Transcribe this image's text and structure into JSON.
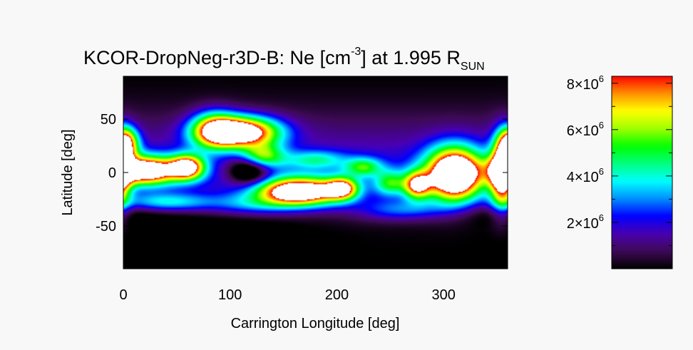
{
  "chart_data": {
    "type": "heatmap",
    "title": {
      "main": "KCOR-DropNeg-r3D-B: Ne [cm",
      "sup": "-3",
      "mid": "] at 1.995 R",
      "sub": "SUN"
    },
    "xlabel": "Carrington Longitude [deg]",
    "ylabel": "Latitude [deg]",
    "xlim": [
      0,
      360
    ],
    "ylim": [
      -90,
      90
    ],
    "xticks": [
      {
        "value": 0,
        "label": "0"
      },
      {
        "value": 100,
        "label": "100"
      },
      {
        "value": 200,
        "label": "200"
      },
      {
        "value": 300,
        "label": "300"
      }
    ],
    "yticks": [
      {
        "value": 50,
        "label": "50"
      },
      {
        "value": 0,
        "label": "0"
      },
      {
        "value": -50,
        "label": "-50"
      }
    ],
    "colorbar": {
      "range": [
        0,
        8300000
      ],
      "ticks": [
        {
          "value": 2000000,
          "coef": "2",
          "times": "×10",
          "exp": "6"
        },
        {
          "value": 4000000,
          "coef": "4",
          "times": "×10",
          "exp": "6"
        },
        {
          "value": 6000000,
          "coef": "6",
          "times": "×10",
          "exp": "6"
        },
        {
          "value": 8000000,
          "coef": "8",
          "times": "×10",
          "exp": "6"
        }
      ]
    },
    "colormap": [
      "#000000",
      "#3d0a55",
      "#4a00b0",
      "#0000ff",
      "#0090ff",
      "#00ffff",
      "#00ff80",
      "#00ff00",
      "#a0ff00",
      "#ffff00",
      "#ff9000",
      "#ff0000",
      "#ffffff"
    ],
    "density_features": [
      {
        "lon": 110,
        "lat": 38,
        "amp": 9500000.0,
        "sx": 25,
        "sy": 10
      },
      {
        "lon": 85,
        "lat": 40,
        "amp": 5000000.0,
        "sx": 15,
        "sy": 12
      },
      {
        "lon": 20,
        "lat": 2,
        "amp": 9500000.0,
        "sx": 22,
        "sy": 9
      },
      {
        "lon": 60,
        "lat": 5,
        "amp": 7500000.0,
        "sx": 11,
        "sy": 8
      },
      {
        "lon": 5,
        "lat": 28,
        "amp": 4000000.0,
        "sx": 8,
        "sy": 10
      },
      {
        "lon": 165,
        "lat": -18,
        "amp": 9800000.0,
        "sx": 28,
        "sy": 9
      },
      {
        "lon": 205,
        "lat": -15,
        "amp": 6000000.0,
        "sx": 10,
        "sy": 7
      },
      {
        "lon": 310,
        "lat": -2,
        "amp": 11000000.0,
        "sx": 18,
        "sy": 17
      },
      {
        "lon": 275,
        "lat": -12,
        "amp": 6500000.0,
        "sx": 9,
        "sy": 9
      },
      {
        "lon": 355,
        "lat": -2,
        "amp": 8000000.0,
        "sx": 8,
        "sy": 22
      },
      {
        "lon": 360,
        "lat": 25,
        "amp": 4000000.0,
        "sx": 7,
        "sy": 12
      },
      {
        "lon": 130,
        "lat": 15,
        "amp": 4500000.0,
        "sx": 14,
        "sy": 8
      },
      {
        "lon": 225,
        "lat": 5,
        "amp": 3500000.0,
        "sx": 12,
        "sy": 6
      },
      {
        "lon": 250,
        "lat": -10,
        "amp": 3500000.0,
        "sx": 10,
        "sy": 8
      },
      {
        "lon": 180,
        "lat": 12,
        "amp": 2500000.0,
        "sx": 20,
        "sy": 6
      },
      {
        "lon": 120,
        "lat": -30,
        "amp": 2000000.0,
        "sx": 30,
        "sy": 7
      },
      {
        "lon": 260,
        "lat": -35,
        "amp": 2200000.0,
        "sx": 30,
        "sy": 7
      },
      {
        "lon": 40,
        "lat": -28,
        "amp": 3000000.0,
        "sx": 30,
        "sy": 6
      }
    ],
    "background_bands": [
      {
        "lat": -5,
        "amp": 1600000.0,
        "sy": 22
      },
      {
        "lat": 30,
        "amp": 900000.0,
        "sy": 25
      }
    ],
    "voids": [
      {
        "lon": 118,
        "lat": 2,
        "depth": 4000000.0,
        "sx": 14,
        "sy": 10
      },
      {
        "lon": 0,
        "lat": -38,
        "depth": 900000.0,
        "sx": 40,
        "sy": 8
      },
      {
        "lon": 90,
        "lat": -60,
        "depth": 900000.0,
        "sx": 50,
        "sy": 15
      }
    ]
  }
}
